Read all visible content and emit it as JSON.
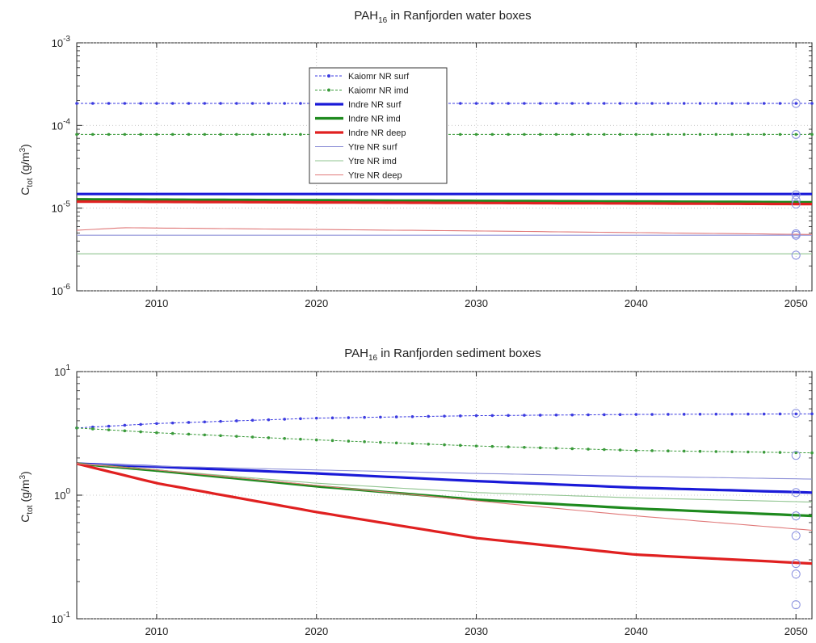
{
  "chart_data": [
    {
      "type": "line",
      "title": {
        "main": "PAH",
        "sub": "16",
        "rest": " in Ranfjorden water boxes"
      },
      "ylabel": {
        "main": "C",
        "sub": "tot",
        "rest": " (g/m",
        "sup": "3",
        "end": ")"
      },
      "xlabel": "",
      "yscale": "log",
      "xlim": [
        2005,
        2051
      ],
      "ylim": [
        1e-06,
        0.001
      ],
      "xticks": [
        "2010",
        "2020",
        "2030",
        "2040",
        "2050"
      ],
      "yticks": [
        {
          "base": "10",
          "exp": "-6",
          "value": 1e-06
        },
        {
          "base": "10",
          "exp": "-5",
          "value": 1e-05
        },
        {
          "base": "10",
          "exp": "-4",
          "value": 0.0001
        },
        {
          "base": "10",
          "exp": "-3",
          "value": 0.001
        }
      ],
      "legend_position": "top-center",
      "series": [
        {
          "name": "Kaiomr NR surf",
          "color": "#3b3be0",
          "style": "marker",
          "x": [
            2005,
            2051
          ],
          "y": [
            0.000185,
            0.000185
          ],
          "end_marker": 0.000185
        },
        {
          "name": "Kaiomr NR imd",
          "color": "#3a9a3a",
          "style": "marker",
          "x": [
            2005,
            2051
          ],
          "y": [
            7.8e-05,
            7.8e-05
          ],
          "end_marker": 7.8e-05
        },
        {
          "name": "Indre NR surf",
          "color": "#1a1ad8",
          "style": "thick",
          "x": [
            2005,
            2051
          ],
          "y": [
            1.48e-05,
            1.48e-05
          ],
          "end_marker": 1.45e-05
        },
        {
          "name": "Indre NR imd",
          "color": "#1e8a1e",
          "style": "thick",
          "x": [
            2005,
            2051
          ],
          "y": [
            1.28e-05,
            1.18e-05
          ],
          "end_marker": 1.25e-05
        },
        {
          "name": "Indre NR deep",
          "color": "#e02020",
          "style": "thick",
          "x": [
            2005,
            2051
          ],
          "y": [
            1.2e-05,
            1.12e-05
          ],
          "end_marker": 1.12e-05
        },
        {
          "name": "Ytre NR surf",
          "color": "#8f92d8",
          "style": "thin",
          "x": [
            2005,
            2051
          ],
          "y": [
            4.7e-06,
            4.7e-06
          ],
          "end_marker": 4.7e-06
        },
        {
          "name": "Ytre NR imd",
          "color": "#8fc48f",
          "style": "thin",
          "x": [
            2005,
            2051
          ],
          "y": [
            2.8e-06,
            2.8e-06
          ],
          "end_marker": 2.7e-06
        },
        {
          "name": "Ytre NR deep",
          "color": "#e07878",
          "style": "thin",
          "x": [
            2005,
            2008,
            2030,
            2051
          ],
          "y": [
            5.4e-06,
            5.8e-06,
            5.3e-06,
            4.8e-06
          ],
          "end_marker": 4.9e-06
        }
      ]
    },
    {
      "type": "line",
      "title": {
        "main": "PAH",
        "sub": "16",
        "rest": " in Ranfjorden sediment boxes"
      },
      "ylabel": {
        "main": "C",
        "sub": "tot",
        "rest": " (g/m",
        "sup": "3",
        "end": ")"
      },
      "xlabel": "",
      "yscale": "log",
      "xlim": [
        2005,
        2051
      ],
      "ylim": [
        0.1,
        10
      ],
      "xticks": [
        "2010",
        "2020",
        "2030",
        "2040",
        "2050"
      ],
      "yticks": [
        {
          "base": "10",
          "exp": "-1",
          "value": 0.1
        },
        {
          "base": "10",
          "exp": "0",
          "value": 1
        },
        {
          "base": "10",
          "exp": "1",
          "value": 10
        }
      ],
      "series": [
        {
          "name": "Kaiomr NR surf",
          "color": "#3b3be0",
          "style": "marker",
          "x": [
            2005,
            2010,
            2020,
            2030,
            2040,
            2051
          ],
          "y": [
            3.5,
            3.8,
            4.2,
            4.4,
            4.5,
            4.55
          ],
          "end_marker": 4.6
        },
        {
          "name": "Kaiomr NR imd",
          "color": "#3a9a3a",
          "style": "marker",
          "x": [
            2005,
            2010,
            2020,
            2030,
            2040,
            2051
          ],
          "y": [
            3.5,
            3.2,
            2.8,
            2.5,
            2.3,
            2.2
          ],
          "end_marker": 2.1
        },
        {
          "name": "Indre NR surf",
          "color": "#1a1ad8",
          "style": "thick",
          "x": [
            2005,
            2010,
            2020,
            2030,
            2040,
            2051
          ],
          "y": [
            1.8,
            1.7,
            1.5,
            1.3,
            1.15,
            1.05
          ],
          "end_marker": 1.05
        },
        {
          "name": "Indre NR imd",
          "color": "#1e8a1e",
          "style": "thick",
          "x": [
            2005,
            2010,
            2020,
            2030,
            2040,
            2051
          ],
          "y": [
            1.8,
            1.58,
            1.18,
            0.92,
            0.78,
            0.68
          ],
          "end_marker": 0.68
        },
        {
          "name": "Indre NR deep",
          "color": "#e02020",
          "style": "thick",
          "x": [
            2005,
            2010,
            2020,
            2030,
            2040,
            2051
          ],
          "y": [
            1.8,
            1.25,
            0.73,
            0.45,
            0.33,
            0.28
          ],
          "end_marker": 0.28
        },
        {
          "name": "Ytre NR surf",
          "color": "#8f92d8",
          "style": "thin",
          "x": [
            2005,
            2010,
            2020,
            2030,
            2040,
            2051
          ],
          "y": [
            1.8,
            1.72,
            1.6,
            1.5,
            1.42,
            1.35
          ],
          "end_marker": 0.23
        },
        {
          "name": "Ytre NR imd",
          "color": "#8fc48f",
          "style": "thin",
          "x": [
            2005,
            2010,
            2020,
            2030,
            2040,
            2051
          ],
          "y": [
            1.8,
            1.6,
            1.25,
            1.05,
            0.95,
            0.88
          ],
          "end_marker": 0.13
        },
        {
          "name": "Ytre NR deep",
          "color": "#e07878",
          "style": "thin",
          "x": [
            2005,
            2010,
            2020,
            2030,
            2040,
            2051
          ],
          "y": [
            1.8,
            1.6,
            1.2,
            0.9,
            0.68,
            0.52
          ],
          "end_marker": 0.47
        }
      ]
    }
  ]
}
